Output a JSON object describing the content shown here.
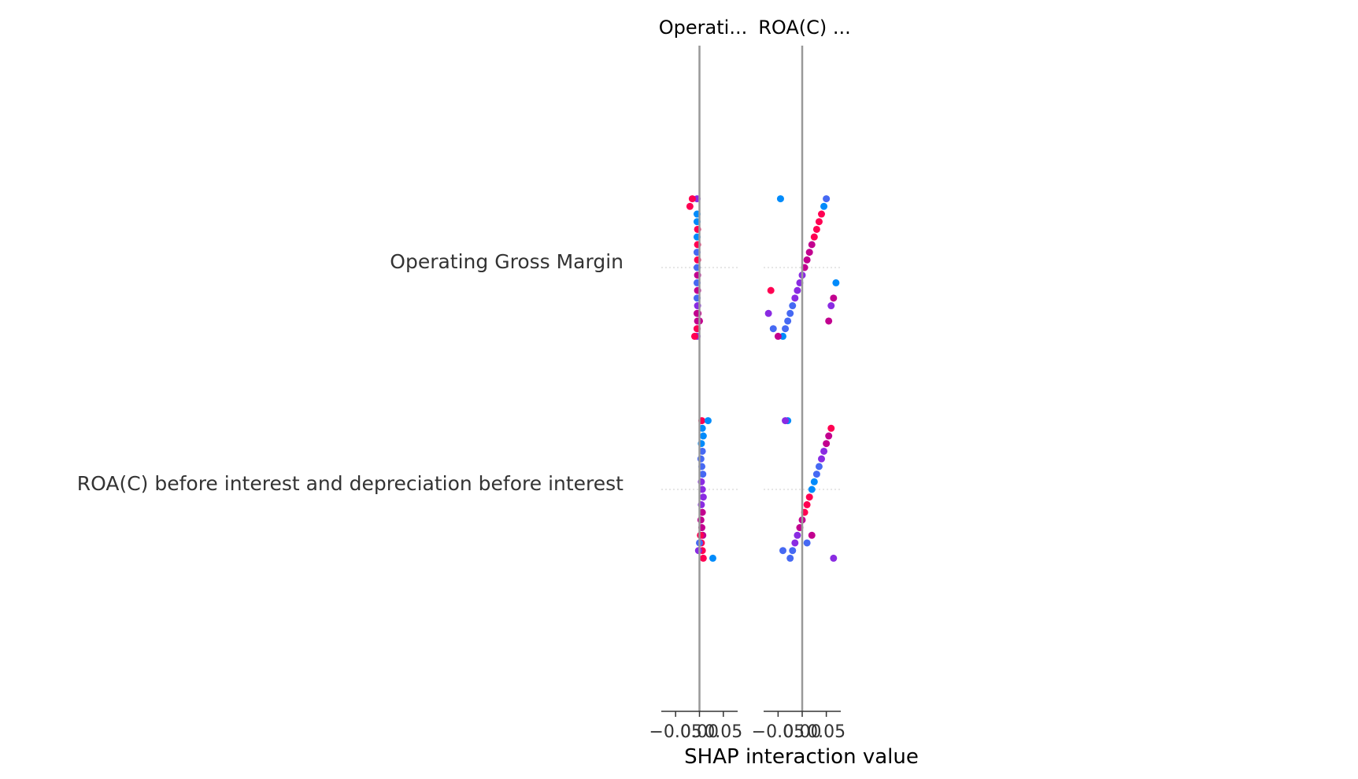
{
  "chart_data": {
    "type": "scatter",
    "title": "",
    "xlabel": "SHAP interaction value",
    "features": [
      "Operating Gross Margin",
      "ROA(C) before interest and depreciation before interest"
    ],
    "panels": [
      {
        "title": "Operati...",
        "xlim": [
          -0.08,
          0.08
        ],
        "xticks": [
          "−0.05",
          "0.00",
          "0.05"
        ],
        "rows": [
          {
            "feature": "Operating Gross Margin",
            "points": [
              [
                -0.005,
                0.55
              ],
              [
                -0.005,
                0.5
              ],
              [
                -0.005,
                0.45
              ],
              [
                -0.004,
                0.6
              ],
              [
                -0.005,
                0.62
              ],
              [
                -0.004,
                0.4
              ],
              [
                -0.005,
                0.35
              ],
              [
                -0.004,
                0.7
              ],
              [
                -0.005,
                0.3
              ],
              [
                -0.004,
                0.75
              ],
              [
                -0.005,
                0.25
              ],
              [
                -0.004,
                0.8
              ],
              [
                -0.005,
                0.2
              ],
              [
                -0.004,
                0.85
              ],
              [
                -0.005,
                0.15
              ],
              [
                -0.004,
                0.9
              ],
              [
                -0.005,
                0.1
              ],
              [
                -0.005,
                0.05
              ],
              [
                -0.02,
                0.95
              ],
              [
                -0.015,
                0.98
              ],
              [
                -0.01,
                0.9
              ],
              [
                -0.005,
                0.92
              ],
              [
                0.0,
                0.6
              ],
              [
                -0.003,
                0.65
              ]
            ]
          },
          {
            "feature": "ROA(C) before interest and depreciation before interest",
            "points": [
              [
                0.005,
                0.95
              ],
              [
                0.008,
                0.9
              ],
              [
                0.006,
                0.85
              ],
              [
                0.004,
                0.8
              ],
              [
                0.007,
                0.75
              ],
              [
                0.005,
                0.7
              ],
              [
                0.003,
                0.65
              ],
              [
                0.006,
                0.6
              ],
              [
                0.004,
                0.55
              ],
              [
                0.008,
                0.5
              ],
              [
                0.006,
                0.45
              ],
              [
                0.004,
                0.4
              ],
              [
                0.007,
                0.35
              ],
              [
                0.005,
                0.3
              ],
              [
                0.003,
                0.25
              ],
              [
                0.006,
                0.2
              ],
              [
                0.004,
                0.15
              ],
              [
                0.008,
                0.1
              ],
              [
                0.006,
                0.05
              ],
              [
                0.018,
                0.05
              ],
              [
                0.028,
                0.08
              ],
              [
                -0.002,
                0.5
              ],
              [
                0.0,
                0.3
              ],
              [
                0.002,
                0.9
              ]
            ]
          }
        ]
      },
      {
        "title": "ROA(C) ...",
        "xlim": [
          -0.08,
          0.08
        ],
        "xticks": [
          "−0.05",
          "0.00",
          "0.05"
        ],
        "rows": [
          {
            "feature": "Operating Gross Margin",
            "points": [
              [
                -0.045,
                0.1
              ],
              [
                -0.04,
                0.15
              ],
              [
                -0.035,
                0.2
              ],
              [
                -0.03,
                0.25
              ],
              [
                -0.025,
                0.3
              ],
              [
                -0.02,
                0.35
              ],
              [
                -0.015,
                0.4
              ],
              [
                -0.01,
                0.45
              ],
              [
                -0.005,
                0.5
              ],
              [
                0.0,
                0.55
              ],
              [
                0.005,
                0.6
              ],
              [
                0.01,
                0.65
              ],
              [
                0.015,
                0.7
              ],
              [
                0.02,
                0.75
              ],
              [
                0.025,
                0.8
              ],
              [
                0.03,
                0.85
              ],
              [
                0.035,
                0.9
              ],
              [
                0.04,
                0.95
              ],
              [
                0.045,
                0.05
              ],
              [
                0.05,
                0.3
              ],
              [
                -0.05,
                0.7
              ],
              [
                -0.06,
                0.2
              ],
              [
                0.055,
                0.6
              ],
              [
                -0.07,
                0.4
              ],
              [
                0.06,
                0.45
              ],
              [
                0.065,
                0.75
              ],
              [
                -0.065,
                0.85
              ],
              [
                0.07,
                0.15
              ]
            ]
          },
          {
            "feature": "ROA(C) before interest and depreciation before interest",
            "points": [
              [
                -0.03,
                0.1
              ],
              [
                -0.025,
                0.2
              ],
              [
                -0.02,
                0.3
              ],
              [
                -0.015,
                0.4
              ],
              [
                -0.01,
                0.5
              ],
              [
                -0.005,
                0.6
              ],
              [
                0.0,
                0.7
              ],
              [
                0.005,
                0.8
              ],
              [
                0.01,
                0.9
              ],
              [
                0.015,
                0.95
              ],
              [
                0.02,
                0.05
              ],
              [
                0.025,
                0.15
              ],
              [
                0.03,
                0.25
              ],
              [
                0.035,
                0.35
              ],
              [
                0.04,
                0.45
              ],
              [
                0.045,
                0.55
              ],
              [
                0.05,
                0.65
              ],
              [
                0.055,
                0.75
              ],
              [
                0.06,
                0.85
              ],
              [
                -0.035,
                0.55
              ],
              [
                0.065,
                0.45
              ],
              [
                -0.04,
                0.35
              ],
              [
                0.01,
                0.25
              ],
              [
                0.02,
                0.65
              ]
            ]
          }
        ]
      }
    ]
  }
}
